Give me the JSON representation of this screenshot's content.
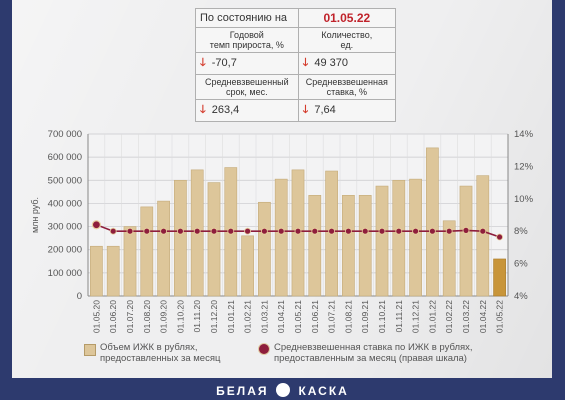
{
  "stats": {
    "as_of_label": "По состоянию на",
    "as_of_date": "01.05.22",
    "growth_label_1": "Годовой",
    "growth_label_2": "темп прироста, %",
    "count_label_1": "Количество,",
    "count_label_2": "ед.",
    "growth_value": "-70,7",
    "count_value": "49 370",
    "term_label_1": "Средневзвешенный",
    "term_label_2": "срок, мес.",
    "rate_label_1": "Средневзвешенная",
    "rate_label_2": "ставка, %",
    "term_value": "263,4",
    "rate_value": "7,64",
    "arrow_glyph": "🡓",
    "arrow_color": "#d43b2c"
  },
  "chart_data": {
    "type": "bar",
    "categories": [
      "01.05.20",
      "01.06.20",
      "01.07.20",
      "01.08.20",
      "01.09.20",
      "01.10.20",
      "01.11.20",
      "01.12.20",
      "01.01.21",
      "01.02.21",
      "01.03.21",
      "01.04.21",
      "01.05.21",
      "01.06.21",
      "01.07.21",
      "01.08.21",
      "01.09.21",
      "01.10.21",
      "01.11.21",
      "01.12.21",
      "01.01.22",
      "01.02.22",
      "01.03.22",
      "01.04.22",
      "01.05.22"
    ],
    "series": [
      {
        "name": "Объем ИЖК в рублях, предоставленных за месяц",
        "axis": "left",
        "type": "bar",
        "values": [
          215000,
          215000,
          300000,
          385000,
          410000,
          500000,
          545000,
          490000,
          555000,
          260000,
          405000,
          505000,
          545000,
          435000,
          540000,
          435000,
          435000,
          475000,
          500000,
          505000,
          640000,
          325000,
          475000,
          520000,
          160000
        ],
        "color": "#ddc69a",
        "last_color": "#c8953a"
      },
      {
        "name": "Средневзвешенная ставка по ИЖК в рублях, предоставленным за месяц (правая шкала)",
        "axis": "right",
        "type": "line",
        "values": [
          8.4,
          8.0,
          8.0,
          8.0,
          8.0,
          8.0,
          8.0,
          8.0,
          8.0,
          8.0,
          8.0,
          8.0,
          8.0,
          8.0,
          8.0,
          8.0,
          8.0,
          8.0,
          8.0,
          8.0,
          8.0,
          8.0,
          8.05,
          8.0,
          7.64
        ],
        "color": "#8e1e3c"
      }
    ],
    "ylabel": "млн руб.",
    "ylim": [
      0,
      700000
    ],
    "yticks": [
      0,
      100000,
      200000,
      300000,
      400000,
      500000,
      600000,
      700000
    ],
    "ytick_labels": [
      "0",
      "100 000",
      "200 000",
      "300 000",
      "400 000",
      "500 000",
      "600 000",
      "700 000"
    ],
    "y2lim": [
      4,
      14
    ],
    "y2ticks": [
      4,
      6,
      8,
      10,
      12,
      14
    ],
    "y2tick_labels": [
      "4%",
      "6%",
      "8%",
      "10%",
      "12%",
      "14%"
    ],
    "grid": true,
    "legend_position": "bottom"
  },
  "legend": {
    "bar_line1": "Объем ИЖК в рублях,",
    "bar_line2": "предоставленных за месяц",
    "line_line1": "Средневзвешенная ставка по ИЖК в рублях,",
    "line_line2": "предоставленным за месяц (правая шкала)"
  },
  "footer": {
    "left_word": "БЕЛАЯ",
    "right_word": "КАСКА"
  }
}
